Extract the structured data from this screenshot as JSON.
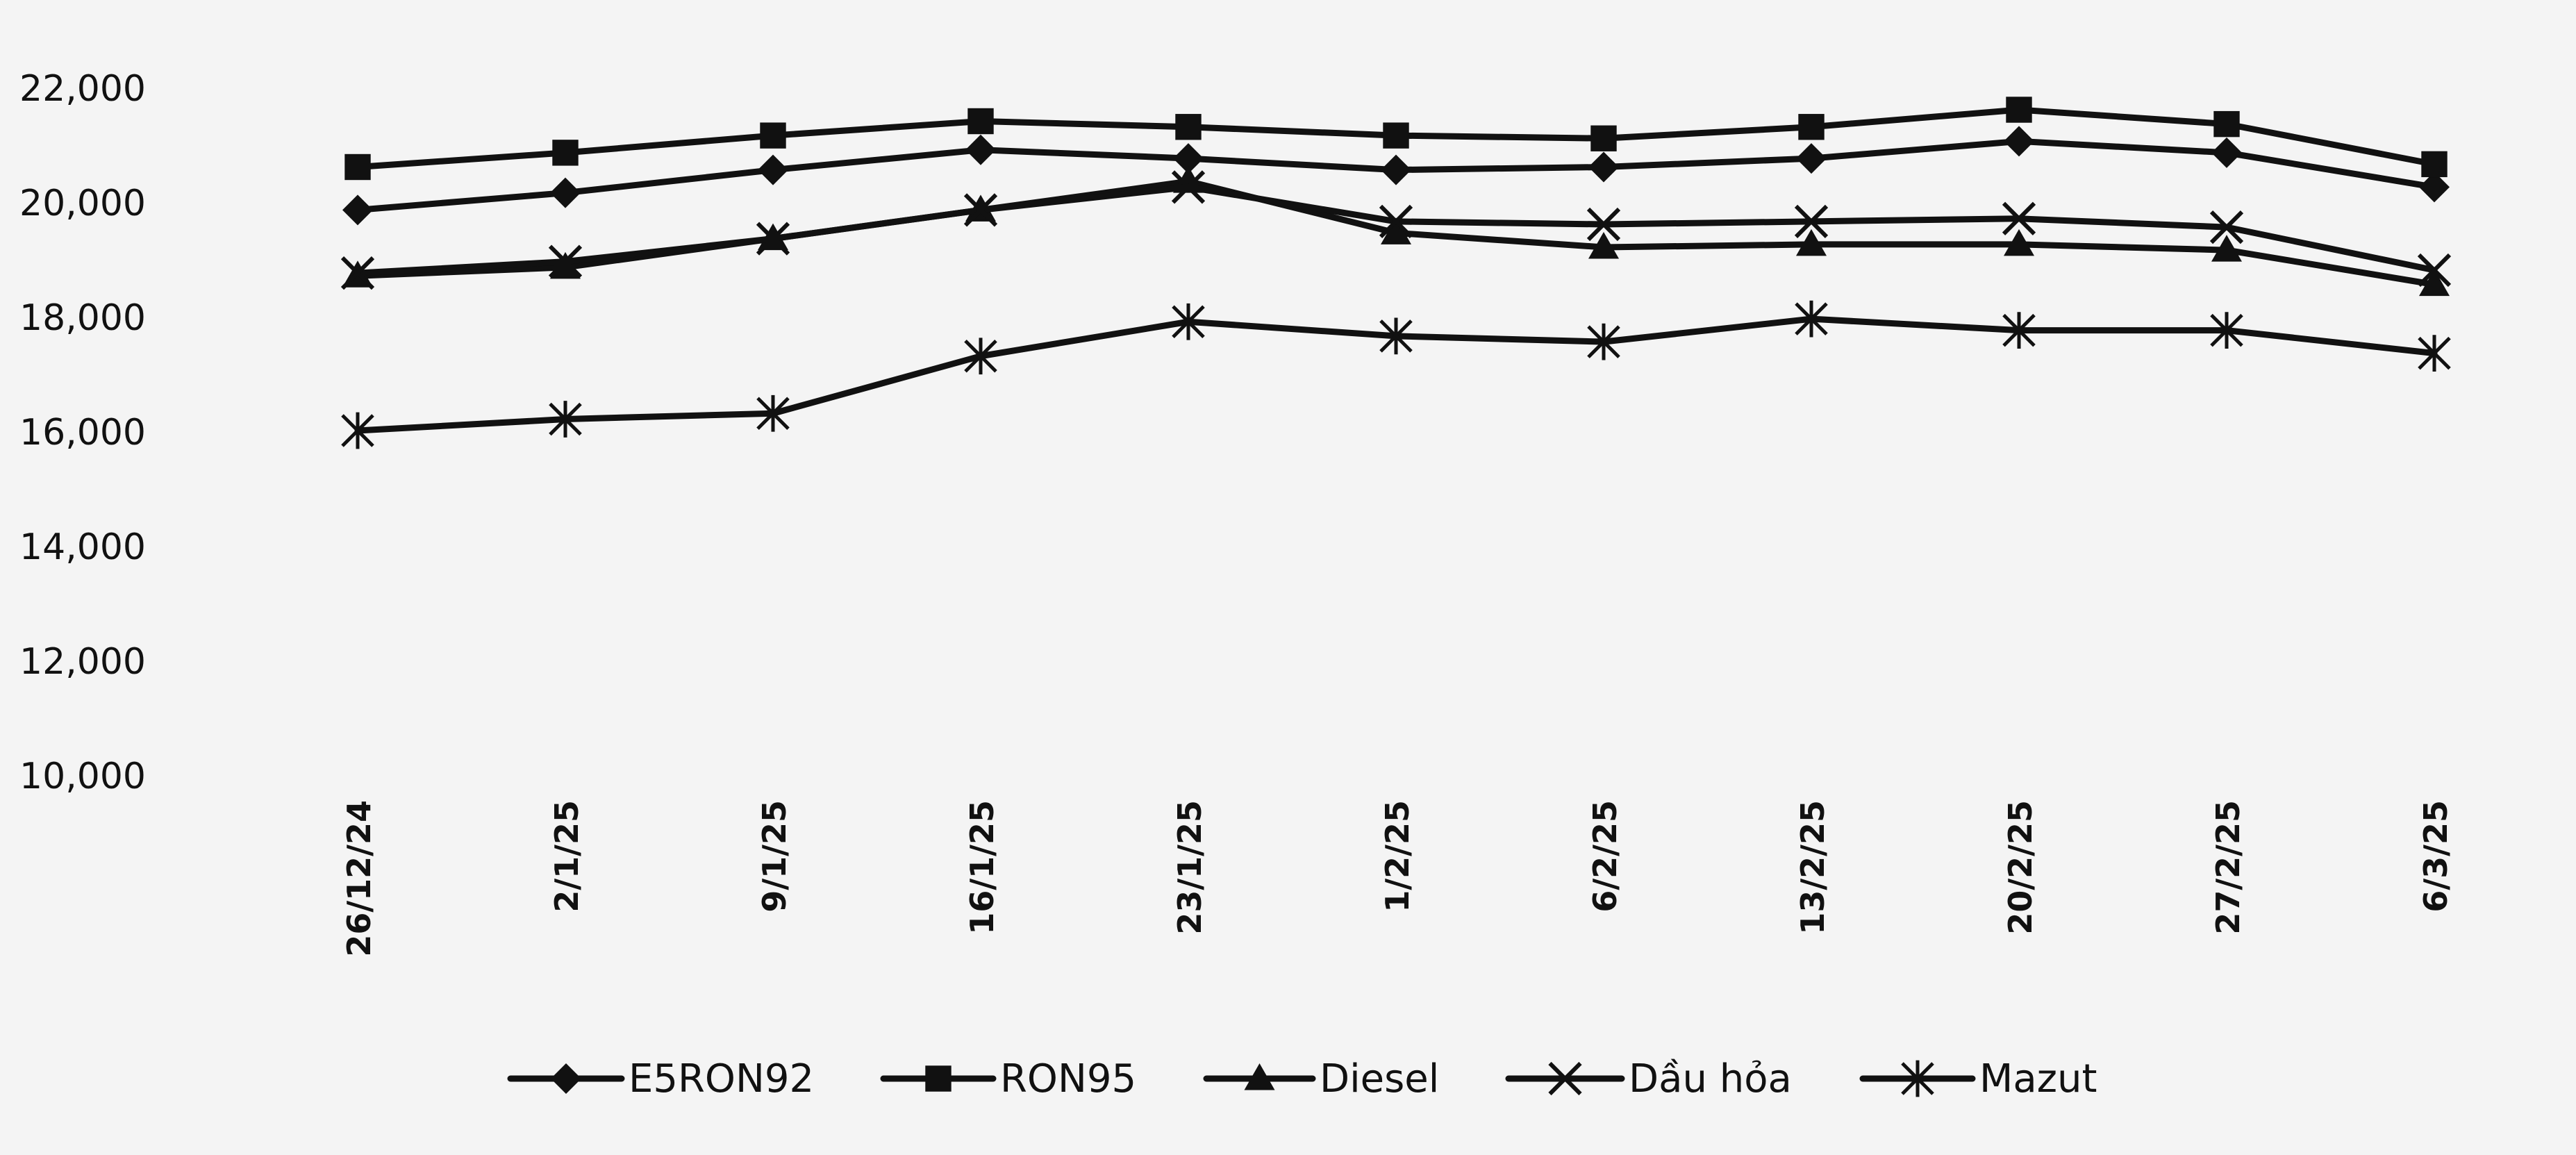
{
  "chart_data": {
    "type": "line",
    "x": [
      "26/12/24",
      "2/1/25",
      "9/1/25",
      "16/1/25",
      "23/1/25",
      "1/2/25",
      "6/2/25",
      "13/2/25",
      "20/2/25",
      "27/2/25",
      "6/3/25"
    ],
    "ylim": [
      10000,
      22000
    ],
    "yticks": [
      "10,000",
      "12,000",
      "14,000",
      "16,000",
      "18,000",
      "20,000",
      "22,000"
    ],
    "ytick_values": [
      10000,
      12000,
      14000,
      16000,
      18000,
      20000,
      22000
    ],
    "grid": false,
    "legend_position": "bottom",
    "series": [
      {
        "name": "E5RON92",
        "marker": "diamond",
        "values": [
          19850,
          20150,
          20550,
          20900,
          20750,
          20550,
          20600,
          20750,
          21050,
          20850,
          20250
        ]
      },
      {
        "name": "RON95",
        "marker": "square",
        "values": [
          20600,
          20850,
          21150,
          21400,
          21300,
          21150,
          21100,
          21300,
          21600,
          21350,
          20650
        ]
      },
      {
        "name": "Diesel",
        "marker": "triangle",
        "values": [
          18700,
          18850,
          19350,
          19850,
          20350,
          19450,
          19200,
          19250,
          19250,
          19150,
          18550
        ]
      },
      {
        "name": "Dầu hỏa",
        "marker": "x",
        "values": [
          18750,
          18950,
          19350,
          19850,
          20250,
          19650,
          19600,
          19650,
          19700,
          19550,
          18800
        ]
      },
      {
        "name": "Mazut",
        "marker": "star",
        "values": [
          16000,
          16200,
          16300,
          17300,
          17900,
          17650,
          17550,
          17950,
          17750,
          17750,
          17350
        ]
      }
    ],
    "colors": {
      "line": "#111111",
      "axis_text": "#111111",
      "background": "#f4f4f4"
    }
  }
}
